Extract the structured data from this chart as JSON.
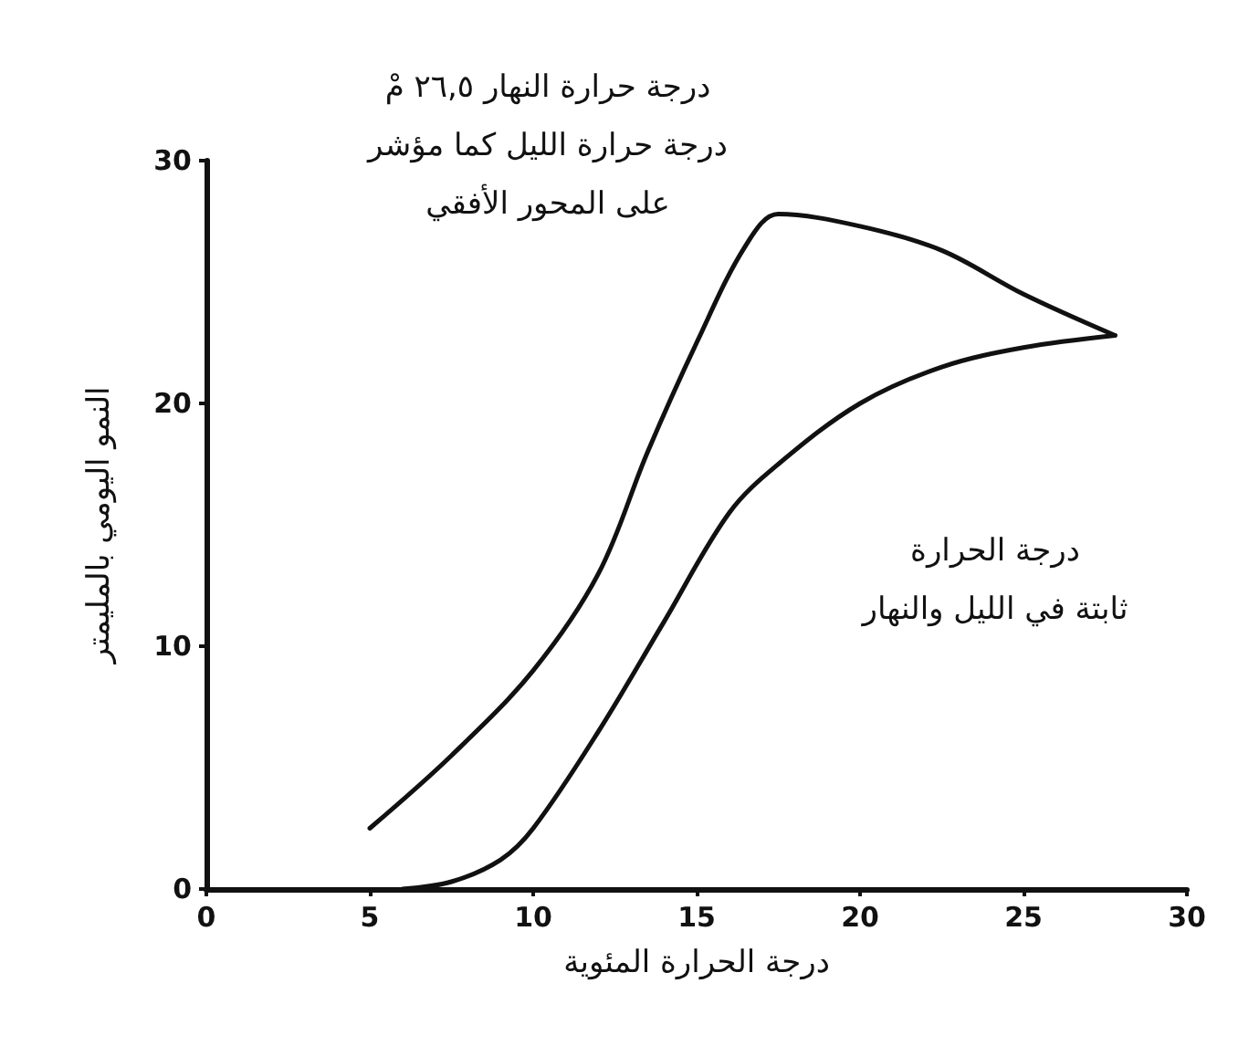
{
  "chart_data": {
    "type": "line",
    "xlabel": "درجة الحرارة المئوية",
    "ylabel": "النمو اليومي بالمليمتر",
    "xlim": [
      0,
      30
    ],
    "xticks": [
      0,
      5,
      10,
      15,
      20,
      25,
      30
    ],
    "ylim": [
      0,
      30
    ],
    "yticks": [
      0,
      10,
      20,
      30
    ],
    "grid": false,
    "marker": "none",
    "line_style": "solid",
    "series": [
      {
        "color": "#111111",
        "x": [
          5,
          7.5,
          10,
          12,
          13.5,
          15,
          16.5,
          17.5,
          20,
          22.5,
          25,
          27.8
        ],
        "values": [
          2.5,
          5.5,
          9,
          13,
          18,
          22.5,
          26.5,
          27.8,
          27.3,
          26.3,
          24.5,
          22.8
        ]
      },
      {
        "color": "#111111",
        "x": [
          6,
          7.5,
          9,
          10,
          12,
          14,
          16,
          17.5,
          20,
          22.5,
          25,
          27.8
        ],
        "values": [
          0,
          0.3,
          1.2,
          2.5,
          6.5,
          11,
          15.5,
          17.5,
          20,
          21.5,
          22.3,
          22.8
        ]
      }
    ],
    "annotations": [
      {
        "text": "درجة حرارة النهار ٢٦,٥ مْ\nدرجة حرارة الليل كما مؤشر\nعلى المحور الأفقي"
      },
      {
        "text": "درجة الحرارة\nثابتة في الليل والنهار"
      }
    ]
  }
}
